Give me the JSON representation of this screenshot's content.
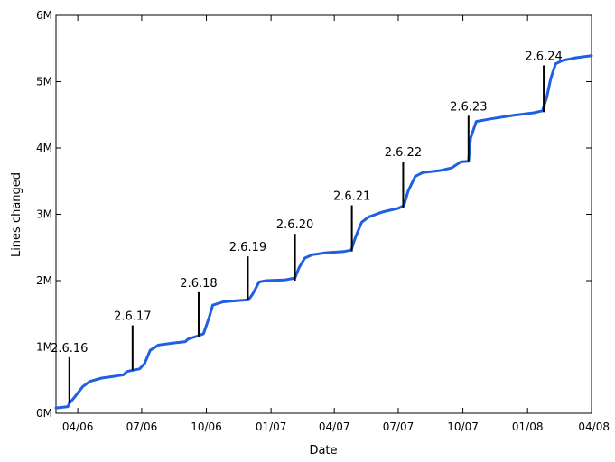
{
  "chart_data": {
    "type": "line",
    "title": "",
    "xlabel": "Date",
    "ylabel": "Lines changed",
    "xlim": [
      "2006-03-01",
      "2008-04-01"
    ],
    "ylim": [
      0,
      6000000
    ],
    "grid": false,
    "x_ticks": [
      {
        "label": "04/06",
        "date": "2006-04-01"
      },
      {
        "label": "07/06",
        "date": "2006-07-01"
      },
      {
        "label": "10/06",
        "date": "2006-10-01"
      },
      {
        "label": "01/07",
        "date": "2007-01-01"
      },
      {
        "label": "04/07",
        "date": "2007-04-01"
      },
      {
        "label": "07/07",
        "date": "2007-07-01"
      },
      {
        "label": "10/07",
        "date": "2007-10-01"
      },
      {
        "label": "01/08",
        "date": "2008-01-01"
      },
      {
        "label": "04/08",
        "date": "2008-04-01"
      }
    ],
    "y_ticks": [
      {
        "label": "0M",
        "value": 0
      },
      {
        "label": "1M",
        "value": 1000000
      },
      {
        "label": "2M",
        "value": 2000000
      },
      {
        "label": "3M",
        "value": 3000000
      },
      {
        "label": "4M",
        "value": 4000000
      },
      {
        "label": "5M",
        "value": 5000000
      },
      {
        "label": "6M",
        "value": 6000000
      }
    ],
    "series": [
      {
        "color": "#1f5fe0",
        "points": [
          [
            "2006-03-01",
            80000
          ],
          [
            "2006-03-18",
            100000
          ],
          [
            "2006-03-20",
            150000
          ],
          [
            "2006-03-28",
            250000
          ],
          [
            "2006-04-08",
            400000
          ],
          [
            "2006-04-18",
            480000
          ],
          [
            "2006-05-05",
            530000
          ],
          [
            "2006-05-25",
            560000
          ],
          [
            "2006-06-05",
            580000
          ],
          [
            "2006-06-10",
            630000
          ],
          [
            "2006-06-28",
            670000
          ],
          [
            "2006-07-05",
            750000
          ],
          [
            "2006-07-13",
            950000
          ],
          [
            "2006-07-25",
            1030000
          ],
          [
            "2006-08-15",
            1060000
          ],
          [
            "2006-09-01",
            1080000
          ],
          [
            "2006-09-05",
            1120000
          ],
          [
            "2006-09-20",
            1170000
          ],
          [
            "2006-09-27",
            1200000
          ],
          [
            "2006-10-05",
            1450000
          ],
          [
            "2006-10-10",
            1630000
          ],
          [
            "2006-10-25",
            1680000
          ],
          [
            "2006-11-15",
            1700000
          ],
          [
            "2006-11-30",
            1710000
          ],
          [
            "2006-12-06",
            1800000
          ],
          [
            "2006-12-15",
            1980000
          ],
          [
            "2006-12-25",
            2000000
          ],
          [
            "2007-01-20",
            2010000
          ],
          [
            "2007-02-04",
            2040000
          ],
          [
            "2007-02-10",
            2200000
          ],
          [
            "2007-02-18",
            2340000
          ],
          [
            "2007-03-01",
            2390000
          ],
          [
            "2007-03-20",
            2420000
          ],
          [
            "2007-04-15",
            2440000
          ],
          [
            "2007-04-25",
            2460000
          ],
          [
            "2007-05-01",
            2650000
          ],
          [
            "2007-05-10",
            2880000
          ],
          [
            "2007-05-20",
            2960000
          ],
          [
            "2007-06-10",
            3040000
          ],
          [
            "2007-07-01",
            3090000
          ],
          [
            "2007-07-09",
            3130000
          ],
          [
            "2007-07-15",
            3350000
          ],
          [
            "2007-07-25",
            3570000
          ],
          [
            "2007-08-05",
            3630000
          ],
          [
            "2007-08-30",
            3660000
          ],
          [
            "2007-09-15",
            3700000
          ],
          [
            "2007-09-28",
            3790000
          ],
          [
            "2007-10-09",
            3800000
          ],
          [
            "2007-10-12",
            4150000
          ],
          [
            "2007-10-20",
            4400000
          ],
          [
            "2007-11-10",
            4440000
          ],
          [
            "2007-12-10",
            4490000
          ],
          [
            "2008-01-10",
            4530000
          ],
          [
            "2008-01-22",
            4560000
          ],
          [
            "2008-01-28",
            4750000
          ],
          [
            "2008-02-03",
            5050000
          ],
          [
            "2008-02-10",
            5270000
          ],
          [
            "2008-02-20",
            5320000
          ],
          [
            "2008-03-10",
            5360000
          ],
          [
            "2008-04-01",
            5390000
          ]
        ]
      }
    ],
    "annotations": [
      {
        "label": "2.6.16",
        "date": "2006-03-20",
        "value": 150000,
        "label_value": 900000
      },
      {
        "label": "2.6.17",
        "date": "2006-06-18",
        "value": 650000,
        "label_value": 1380000
      },
      {
        "label": "2.6.18",
        "date": "2006-09-20",
        "value": 1150000,
        "label_value": 1880000
      },
      {
        "label": "2.6.19",
        "date": "2006-11-29",
        "value": 1700000,
        "label_value": 2420000
      },
      {
        "label": "2.6.20",
        "date": "2007-02-04",
        "value": 2000000,
        "label_value": 2760000
      },
      {
        "label": "2.6.21",
        "date": "2007-04-26",
        "value": 2440000,
        "label_value": 3190000
      },
      {
        "label": "2.6.22",
        "date": "2007-07-08",
        "value": 3100000,
        "label_value": 3850000
      },
      {
        "label": "2.6.23",
        "date": "2007-10-09",
        "value": 3800000,
        "label_value": 4540000
      },
      {
        "label": "2.6.24",
        "date": "2008-01-24",
        "value": 4540000,
        "label_value": 5300000
      }
    ]
  }
}
